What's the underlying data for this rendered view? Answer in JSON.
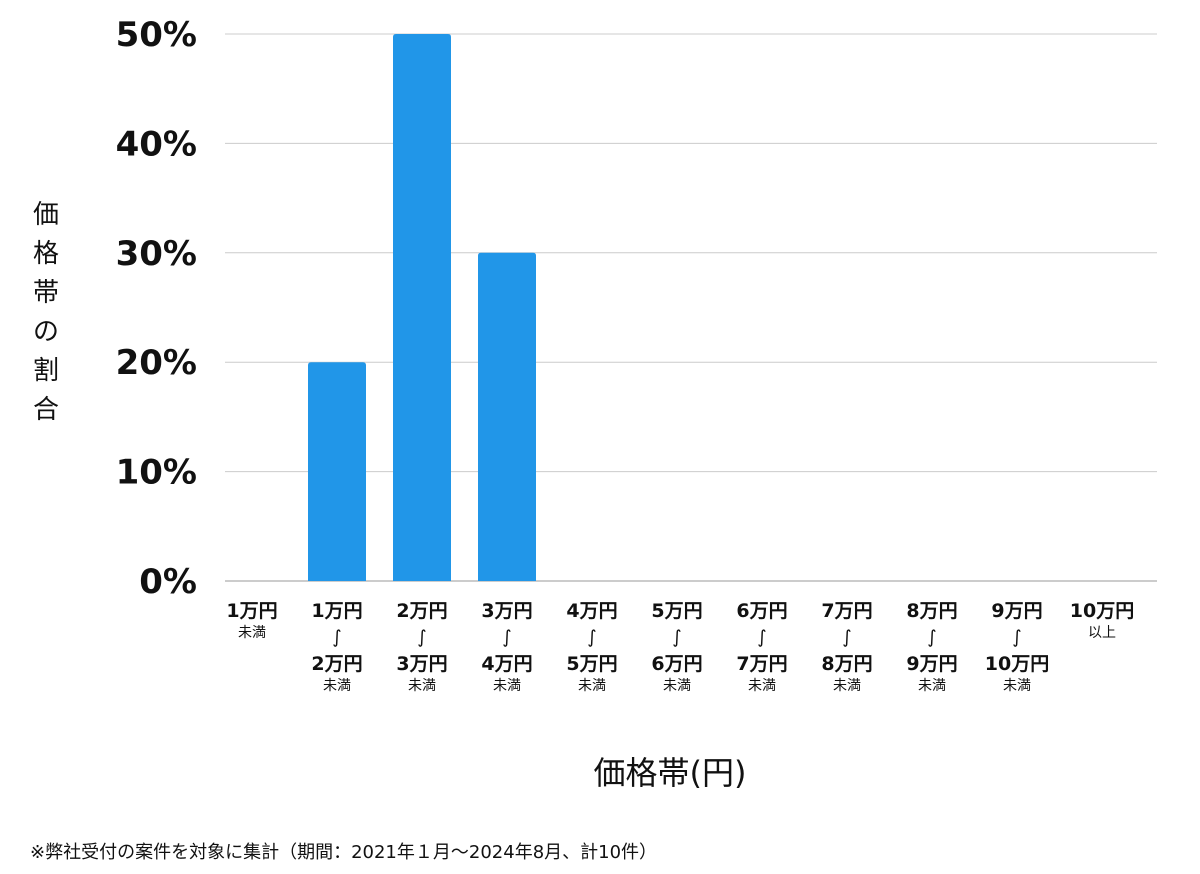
{
  "chart_data": {
    "type": "bar",
    "ylabel": "価格帯の割合",
    "xlabel": "価格帯(円)",
    "ylim": [
      0,
      50
    ],
    "yticks": [
      "0%",
      "10%",
      "20%",
      "30%",
      "40%",
      "50%"
    ],
    "grid": true,
    "categories": [
      {
        "line1": "1万円",
        "sep": "",
        "line2": "",
        "sub": "未満"
      },
      {
        "line1": "1万円",
        "sep": "∫",
        "line2": "2万円",
        "sub": "未満"
      },
      {
        "line1": "2万円",
        "sep": "∫",
        "line2": "3万円",
        "sub": "未満"
      },
      {
        "line1": "3万円",
        "sep": "∫",
        "line2": "4万円",
        "sub": "未満"
      },
      {
        "line1": "4万円",
        "sep": "∫",
        "line2": "5万円",
        "sub": "未満"
      },
      {
        "line1": "5万円",
        "sep": "∫",
        "line2": "6万円",
        "sub": "未満"
      },
      {
        "line1": "6万円",
        "sep": "∫",
        "line2": "7万円",
        "sub": "未満"
      },
      {
        "line1": "7万円",
        "sep": "∫",
        "line2": "8万円",
        "sub": "未満"
      },
      {
        "line1": "8万円",
        "sep": "∫",
        "line2": "9万円",
        "sub": "未満"
      },
      {
        "line1": "9万円",
        "sep": "∫",
        "line2": "10万円",
        "sub": "未満"
      },
      {
        "line1": "10万円",
        "sep": "",
        "line2": "",
        "sub": "以上"
      }
    ],
    "values": [
      0,
      20,
      50,
      30,
      0,
      0,
      0,
      0,
      0,
      0,
      0
    ],
    "bar_color": "#2196e8",
    "grid_color": "#cccccc"
  },
  "footnote": "※弊社受付の案件を対象に集計（期間：2021年１月～2024年8月、計10件）"
}
